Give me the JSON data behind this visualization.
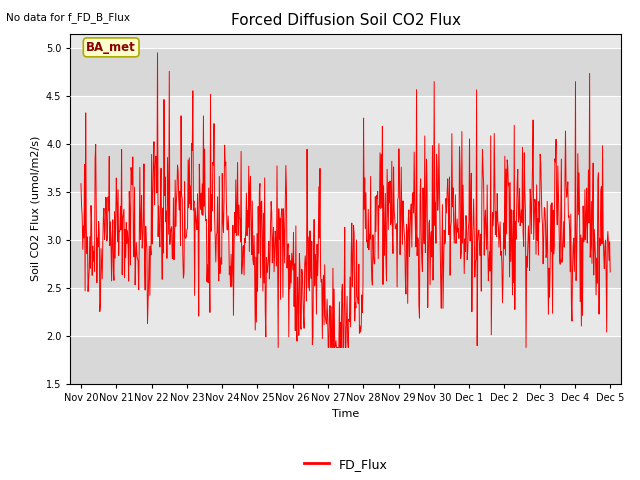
{
  "title": "Forced Diffusion Soil CO2 Flux",
  "top_left_text": "No data for f_FD_B_Flux",
  "xlabel": "Time",
  "ylabel": "Soil CO2 Flux (umol/m2/s)",
  "ylim": [
    1.5,
    5.15
  ],
  "yticks": [
    1.5,
    2.0,
    2.5,
    3.0,
    3.5,
    4.0,
    4.5,
    5.0
  ],
  "line_color": "#ff0000",
  "bg_color": "#e8e8e8",
  "legend_label": "FD_Flux",
  "annotation_text": "BA_met",
  "annotation_bg": "#ffffcc",
  "annotation_border": "#aaaa00",
  "tick_labels": [
    "Nov 20",
    "Nov 21",
    "Nov 22",
    "Nov 23",
    "Nov 24",
    "Nov 25",
    "Nov 26",
    "Nov 27",
    "Nov 28",
    "Nov 29",
    "Nov 30",
    "Dec 1",
    "Dec 2",
    "Dec 3",
    "Dec 4",
    "Dec 5"
  ],
  "title_fontsize": 11,
  "axis_label_fontsize": 8,
  "tick_fontsize": 7,
  "legend_fontsize": 9
}
